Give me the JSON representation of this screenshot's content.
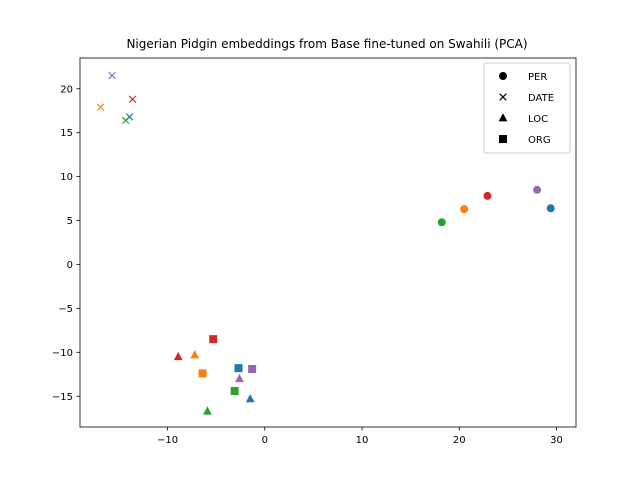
{
  "chart_data": {
    "type": "scatter",
    "title": "Nigerian Pidgin embeddings from Base fine-tuned on Swahili (PCA)",
    "xlabel": "",
    "ylabel": "",
    "xlim": [
      -19,
      32
    ],
    "ylim": [
      -18.5,
      23.5
    ],
    "xticks": [
      -10,
      0,
      10,
      20,
      30
    ],
    "yticks": [
      -15,
      -10,
      -5,
      0,
      5,
      10,
      15,
      20
    ],
    "xtick_labels": [
      "−10",
      "0",
      "10",
      "20",
      "30"
    ],
    "ytick_labels": [
      "−15",
      "−10",
      "−5",
      "0",
      "5",
      "10",
      "15",
      "20"
    ],
    "grid": false,
    "legend_position": "top-right",
    "legend": [
      {
        "label": "PER",
        "marker": "circle"
      },
      {
        "label": "DATE",
        "marker": "x"
      },
      {
        "label": "LOC",
        "marker": "triangle"
      },
      {
        "label": "ORG",
        "marker": "square"
      }
    ],
    "colors": {
      "blue": "#1f77b4",
      "orange": "#ff7f0e",
      "green": "#2ca02c",
      "red": "#d62728",
      "purple": "#9467bd"
    },
    "points": [
      {
        "x": 29.4,
        "y": 6.4,
        "marker": "circle",
        "color": "blue"
      },
      {
        "x": 20.5,
        "y": 6.3,
        "marker": "circle",
        "color": "orange"
      },
      {
        "x": 18.2,
        "y": 4.8,
        "marker": "circle",
        "color": "green"
      },
      {
        "x": 22.9,
        "y": 7.8,
        "marker": "circle",
        "color": "red"
      },
      {
        "x": 28.0,
        "y": 8.5,
        "marker": "circle",
        "color": "purple"
      },
      {
        "x": -13.9,
        "y": 16.8,
        "marker": "x",
        "color": "blue"
      },
      {
        "x": -16.9,
        "y": 17.9,
        "marker": "x",
        "color": "orange"
      },
      {
        "x": -14.3,
        "y": 16.4,
        "marker": "x",
        "color": "green"
      },
      {
        "x": -13.6,
        "y": 18.8,
        "marker": "x",
        "color": "red"
      },
      {
        "x": -15.7,
        "y": 21.5,
        "marker": "x",
        "color": "purple"
      },
      {
        "x": -1.5,
        "y": -15.3,
        "marker": "triangle",
        "color": "blue"
      },
      {
        "x": -7.2,
        "y": -10.3,
        "marker": "triangle",
        "color": "orange"
      },
      {
        "x": -5.9,
        "y": -16.7,
        "marker": "triangle",
        "color": "green"
      },
      {
        "x": -8.9,
        "y": -10.5,
        "marker": "triangle",
        "color": "red"
      },
      {
        "x": -2.6,
        "y": -13.0,
        "marker": "triangle",
        "color": "purple"
      },
      {
        "x": -2.7,
        "y": -11.8,
        "marker": "square",
        "color": "blue"
      },
      {
        "x": -6.4,
        "y": -12.4,
        "marker": "square",
        "color": "orange"
      },
      {
        "x": -3.1,
        "y": -14.4,
        "marker": "square",
        "color": "green"
      },
      {
        "x": -5.3,
        "y": -8.5,
        "marker": "square",
        "color": "red"
      },
      {
        "x": -1.3,
        "y": -11.9,
        "marker": "square",
        "color": "purple"
      }
    ]
  }
}
